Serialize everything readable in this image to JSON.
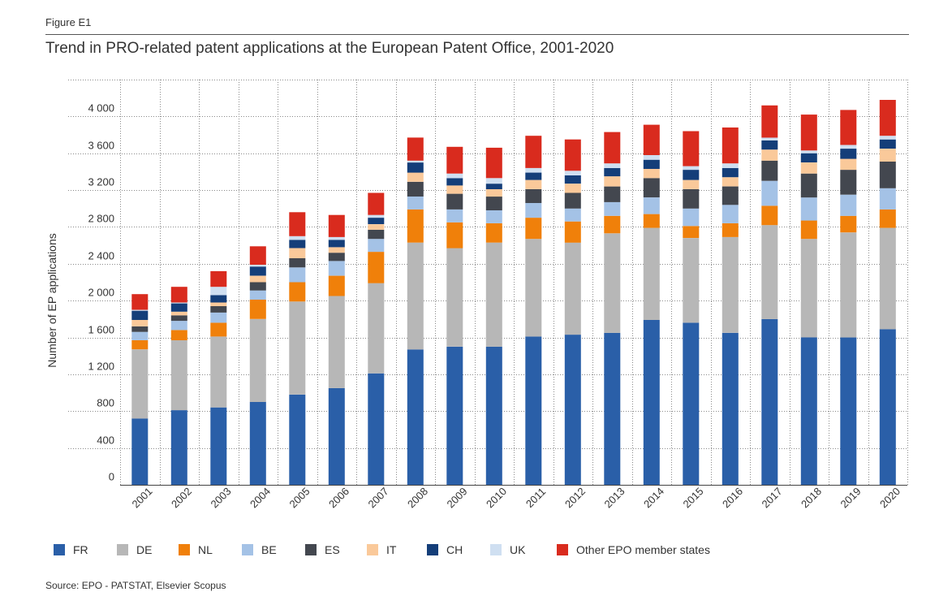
{
  "figure_label": "Figure E1",
  "title": "Trend in PRO-related patent applications at the European Patent Office, 2001-2020",
  "source": "Source: EPO - PATSTAT, Elsevier Scopus",
  "chart_data": {
    "type": "bar",
    "stacked": true,
    "title": "Trend in PRO-related patent applications at the European Patent Office, 2001-2020",
    "xlabel": "",
    "ylabel": "Number of EP applications",
    "ylim": [
      0,
      4400
    ],
    "yticks": [
      0,
      400,
      800,
      1200,
      1600,
      2000,
      2400,
      2800,
      3200,
      3600,
      4000
    ],
    "ytick_labels": [
      "0",
      "400",
      "800",
      "1 200",
      "1 600",
      "2 000",
      "2 400",
      "2 800",
      "3 200",
      "3 600",
      "4 000"
    ],
    "categories": [
      "2001",
      "2002",
      "2003",
      "2004",
      "2005",
      "2006",
      "2007",
      "2008",
      "2009",
      "2010",
      "2011",
      "2012",
      "2013",
      "2014",
      "2015",
      "2016",
      "2017",
      "2018",
      "2019",
      "2020"
    ],
    "series": [
      {
        "name": "FR",
        "color": "#2a5fa8",
        "values": [
          720,
          810,
          840,
          900,
          980,
          1050,
          1210,
          1470,
          1500,
          1500,
          1610,
          1630,
          1650,
          1790,
          1760,
          1650,
          1800,
          1600,
          1600,
          1690
        ]
      },
      {
        "name": "DE",
        "color": "#b7b7b7",
        "values": [
          750,
          760,
          770,
          900,
          1010,
          1000,
          980,
          1160,
          1070,
          1130,
          1060,
          1000,
          1080,
          1000,
          920,
          1040,
          1020,
          1070,
          1140,
          1100
        ]
      },
      {
        "name": "NL",
        "color": "#f0800a",
        "values": [
          100,
          110,
          150,
          210,
          210,
          220,
          340,
          360,
          280,
          210,
          230,
          230,
          190,
          150,
          130,
          150,
          210,
          200,
          180,
          200
        ]
      },
      {
        "name": "BE",
        "color": "#a4c2e6",
        "values": [
          90,
          100,
          110,
          100,
          160,
          160,
          140,
          140,
          140,
          140,
          160,
          140,
          150,
          180,
          190,
          200,
          270,
          250,
          230,
          230
        ]
      },
      {
        "name": "ES",
        "color": "#43474f",
        "values": [
          60,
          60,
          70,
          90,
          100,
          90,
          100,
          160,
          170,
          150,
          150,
          170,
          170,
          210,
          210,
          200,
          220,
          260,
          270,
          290
        ]
      },
      {
        "name": "IT",
        "color": "#fac99a",
        "values": [
          70,
          40,
          40,
          70,
          110,
          60,
          60,
          100,
          90,
          80,
          100,
          100,
          110,
          100,
          100,
          100,
          120,
          120,
          120,
          140
        ]
      },
      {
        "name": "CH",
        "color": "#143e79",
        "values": [
          100,
          90,
          80,
          100,
          90,
          80,
          70,
          110,
          80,
          60,
          80,
          90,
          90,
          100,
          110,
          100,
          100,
          100,
          110,
          100
        ]
      },
      {
        "name": "UK",
        "color": "#cfdff1",
        "values": [
          10,
          10,
          90,
          20,
          40,
          30,
          30,
          20,
          50,
          60,
          50,
          50,
          50,
          50,
          40,
          50,
          30,
          30,
          40,
          40
        ]
      },
      {
        "name": "Other EPO member states",
        "color": "#d92b1e",
        "values": [
          170,
          170,
          170,
          200,
          260,
          240,
          240,
          250,
          290,
          330,
          350,
          340,
          340,
          330,
          380,
          390,
          350,
          390,
          380,
          390
        ]
      }
    ],
    "legend_position": "bottom"
  }
}
